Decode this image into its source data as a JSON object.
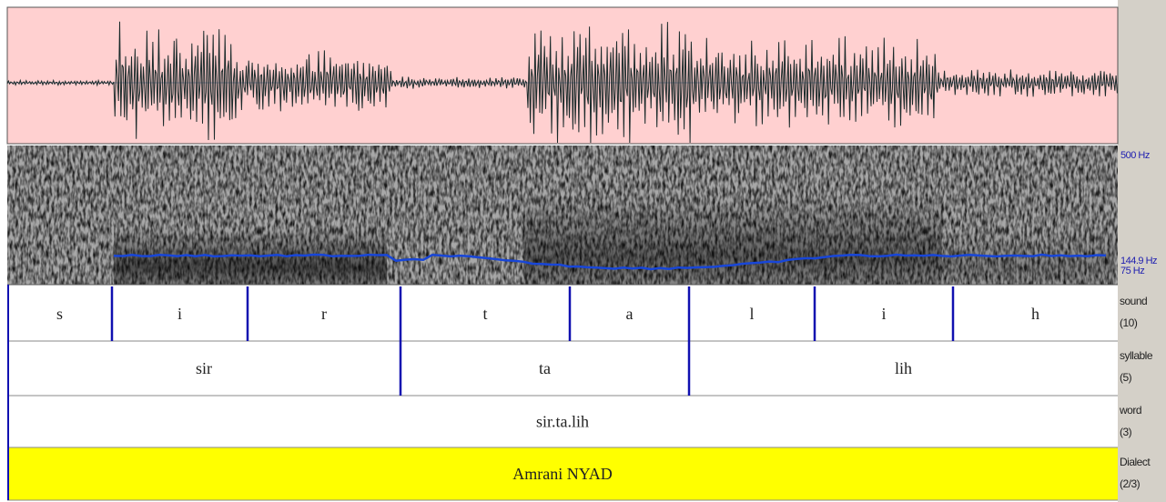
{
  "pitch_axis": {
    "top": "500 Hz",
    "current": "144.9 Hz",
    "bottom": "75 Hz"
  },
  "tiers": [
    {
      "name": "sound",
      "count": "(10)",
      "intervals": [
        "s",
        "i",
        "r",
        "t",
        "a",
        "l",
        "i",
        "h"
      ]
    },
    {
      "name": "syllable",
      "count": "(5)",
      "intervals": [
        "sir",
        "ta",
        "lih"
      ]
    },
    {
      "name": "word",
      "count": "(3)",
      "intervals": [
        "sir.ta.lih"
      ]
    },
    {
      "name": "Dialect",
      "count": "(2/3)",
      "intervals": [
        "Amrani NYAD"
      ]
    }
  ]
}
